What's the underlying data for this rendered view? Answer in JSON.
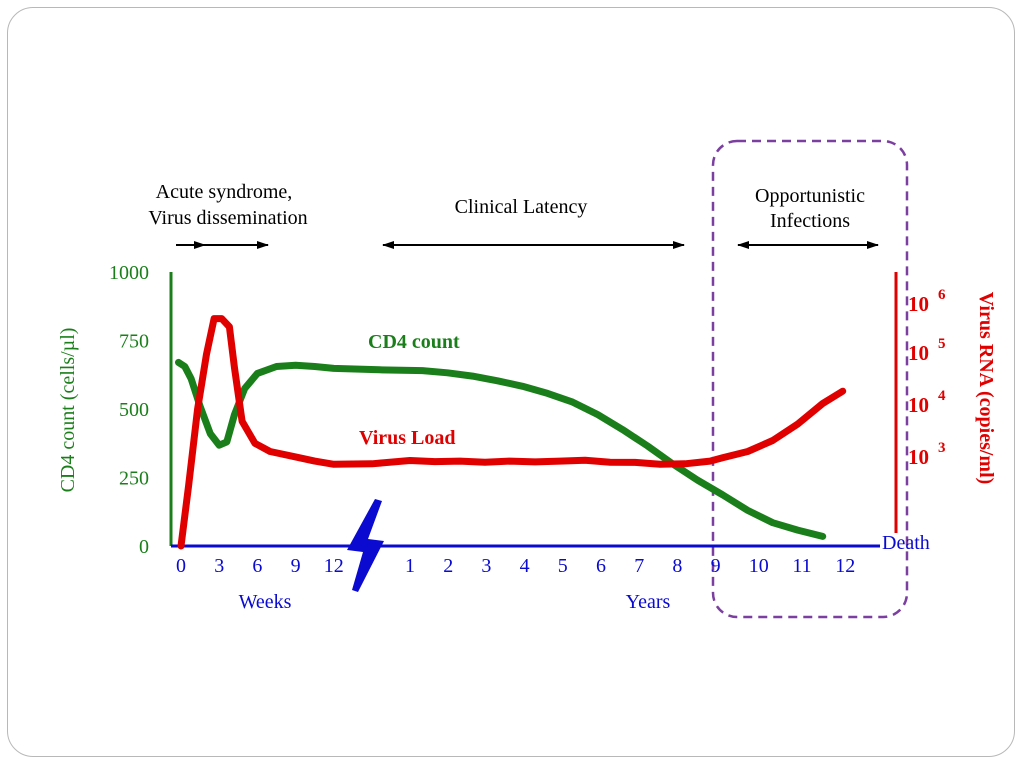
{
  "chart_data": {
    "type": "line",
    "title": "",
    "colors": {
      "cd4": "#1a7f1a",
      "virus": "#e00000",
      "time_axis": "#0a0ad0",
      "phases": "#000000",
      "highlight_box": "#7b3fa0"
    },
    "phases": [
      {
        "label_lines": [
          "Acute syndrome,",
          "Virus dissemination"
        ]
      },
      {
        "label_lines": [
          "Clinical Latency"
        ]
      },
      {
        "label_lines": [
          "Opportunistic",
          "Infections"
        ]
      }
    ],
    "x_axis": {
      "weeks_ticks": [
        "0",
        "3",
        "6",
        "9",
        "12"
      ],
      "weeks_label": "Weeks",
      "years_ticks": [
        "1",
        "2",
        "3",
        "4",
        "5",
        "6",
        "7",
        "8",
        "9",
        "10",
        "11",
        "12"
      ],
      "years_label": "Years",
      "end_label": "Death"
    },
    "y_left": {
      "label": "CD4 count (cells/µl)",
      "ticks": [
        "1000",
        "750",
        "500",
        "250",
        "0"
      ],
      "ylim": [
        0,
        1000
      ]
    },
    "y_right": {
      "label": "Virus RNA (copies/ml)",
      "ticks": [
        {
          "base": "10",
          "exp": "6"
        },
        {
          "base": "10",
          "exp": "5"
        },
        {
          "base": "10",
          "exp": "4"
        },
        {
          "base": "10",
          "exp": "3"
        }
      ]
    },
    "series": [
      {
        "name": "CD4 count",
        "color": "#1a7f1a",
        "points": [
          {
            "t": -0.2,
            "v": 670
          },
          {
            "t": 0.3,
            "v": 655
          },
          {
            "t": 0.8,
            "v": 610
          },
          {
            "t": 1.5,
            "v": 510
          },
          {
            "t": 2.3,
            "v": 410
          },
          {
            "t": 3,
            "v": 368
          },
          {
            "t": 3.6,
            "v": 380
          },
          {
            "t": 4.2,
            "v": 480
          },
          {
            "t": 5,
            "v": 575
          },
          {
            "t": 6,
            "v": 630
          },
          {
            "t": 7.5,
            "v": 655
          },
          {
            "t": 9,
            "v": 660
          },
          {
            "t": 10.5,
            "v": 655
          },
          {
            "t": 12,
            "v": 648
          },
          {
            "t": 13.2,
            "v": 643
          },
          {
            "t": 14.5,
            "v": 640
          },
          {
            "t": 15.5,
            "v": 632
          },
          {
            "t": 16.5,
            "v": 620
          },
          {
            "t": 17.5,
            "v": 603
          },
          {
            "t": 18.5,
            "v": 583
          },
          {
            "t": 19.5,
            "v": 557
          },
          {
            "t": 20.5,
            "v": 525
          },
          {
            "t": 21.5,
            "v": 480
          },
          {
            "t": 22.5,
            "v": 425
          },
          {
            "t": 23.5,
            "v": 365
          },
          {
            "t": 24.5,
            "v": 300
          },
          {
            "t": 25.5,
            "v": 240
          },
          {
            "t": 26.5,
            "v": 187
          },
          {
            "t": 27.5,
            "v": 130
          },
          {
            "t": 28.5,
            "v": 85
          },
          {
            "t": 29.5,
            "v": 58
          },
          {
            "t": 30.5,
            "v": 35
          }
        ]
      },
      {
        "name": "Virus Load",
        "color": "#e00000",
        "points": [
          {
            "t": 0,
            "v": 0
          },
          {
            "t": 0.6,
            "v": 220
          },
          {
            "t": 1.3,
            "v": 500
          },
          {
            "t": 2,
            "v": 700
          },
          {
            "t": 2.6,
            "v": 830
          },
          {
            "t": 3.2,
            "v": 830
          },
          {
            "t": 3.8,
            "v": 800
          },
          {
            "t": 4.2,
            "v": 650
          },
          {
            "t": 4.8,
            "v": 455
          },
          {
            "t": 5.8,
            "v": 375
          },
          {
            "t": 7,
            "v": 345
          },
          {
            "t": 9,
            "v": 325
          },
          {
            "t": 10.5,
            "v": 310
          },
          {
            "t": 12,
            "v": 298
          },
          {
            "t": 13,
            "v": 300
          },
          {
            "t": 14,
            "v": 312
          },
          {
            "t": 15,
            "v": 308
          },
          {
            "t": 16,
            "v": 310
          },
          {
            "t": 17,
            "v": 306
          },
          {
            "t": 18,
            "v": 310
          },
          {
            "t": 19,
            "v": 307
          },
          {
            "t": 20,
            "v": 310
          },
          {
            "t": 21,
            "v": 313
          },
          {
            "t": 22,
            "v": 306
          },
          {
            "t": 23,
            "v": 305
          },
          {
            "t": 24,
            "v": 298
          },
          {
            "t": 25,
            "v": 300
          },
          {
            "t": 26,
            "v": 310
          },
          {
            "t": 26.5,
            "v": 322
          },
          {
            "t": 27.5,
            "v": 345
          },
          {
            "t": 28.5,
            "v": 385
          },
          {
            "t": 29.5,
            "v": 445
          },
          {
            "t": 30.5,
            "v": 520
          },
          {
            "t": 31.3,
            "v": 565
          }
        ]
      }
    ],
    "highlight": "Opportunistic Infections"
  }
}
